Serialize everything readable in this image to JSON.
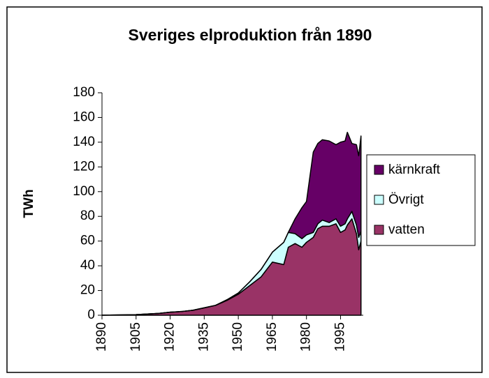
{
  "chart_data": {
    "type": "stacked-area",
    "title": "Sveriges elproduktion från 1890",
    "y_label": "TWh",
    "x": [
      1890,
      1900,
      1905,
      1910,
      1915,
      1920,
      1925,
      1930,
      1935,
      1940,
      1945,
      1950,
      1955,
      1960,
      1965,
      1970,
      1972,
      1975,
      1978,
      1980,
      1983,
      1985,
      1987,
      1990,
      1993,
      1995,
      1997,
      1998,
      2000,
      2002,
      2003,
      2004
    ],
    "series": [
      {
        "name": "vatten",
        "color": "#993366",
        "values": [
          0.1,
          0.3,
          0.5,
          1,
          1.5,
          2.5,
          3,
          4,
          6,
          8,
          12,
          17,
          24,
          31,
          43,
          41,
          55,
          58,
          55,
          59,
          63,
          70,
          72,
          72,
          74,
          67,
          69,
          73,
          78,
          66,
          53,
          60
        ]
      },
      {
        "name": "Övrigt",
        "color": "#ccffff",
        "values": [
          0,
          0,
          0,
          0,
          0,
          0,
          0,
          0,
          0,
          0,
          0.5,
          1,
          3,
          6,
          8,
          18,
          12,
          8,
          7,
          6,
          4,
          4,
          5,
          3,
          4,
          5,
          5,
          5,
          6,
          7,
          10,
          8
        ]
      },
      {
        "name": "kärnkraft",
        "color": "#660066",
        "values": [
          0,
          0,
          0,
          0,
          0,
          0,
          0,
          0,
          0,
          0,
          0,
          0,
          0,
          0,
          0,
          0,
          0,
          12,
          25,
          27,
          65,
          65,
          65,
          66,
          60,
          68,
          67,
          70,
          55,
          65,
          66,
          77
        ]
      }
    ],
    "xlim": [
      1890,
      2005
    ],
    "xticks": [
      1890,
      1905,
      1920,
      1935,
      1950,
      1965,
      1980,
      1995
    ],
    "ylim": [
      0,
      180
    ],
    "yticks": [
      0,
      20,
      40,
      60,
      80,
      100,
      120,
      140,
      160,
      180
    ],
    "legend": "right"
  }
}
